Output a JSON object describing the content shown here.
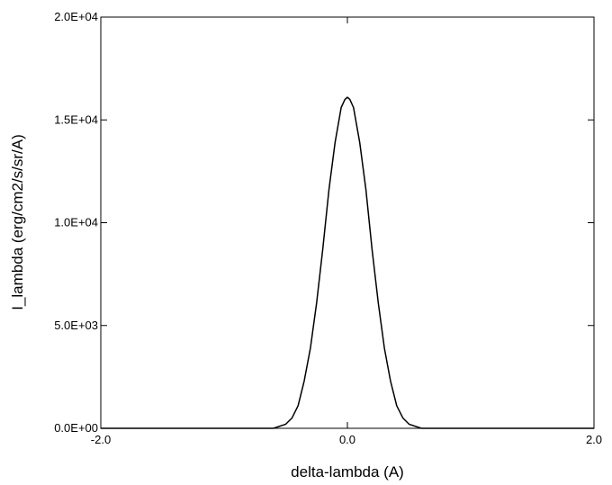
{
  "chart_data": {
    "type": "line",
    "title": "",
    "xlabel": "delta-lambda (A)",
    "ylabel": "I_lambda (erg/cm2/s/sr/A)",
    "xlim": [
      -2.0,
      2.0
    ],
    "ylim": [
      0,
      20000
    ],
    "x_ticks": [
      -2.0,
      0.0,
      2.0
    ],
    "x_tick_labels": [
      "-2.0",
      "0.0",
      "2.0"
    ],
    "y_ticks": [
      0,
      5000,
      10000,
      15000,
      20000
    ],
    "y_tick_labels": [
      "0.0E+00",
      "5.0E+03",
      "1.0E+04",
      "1.5E+04",
      "2.0E+04"
    ],
    "grid": false,
    "series": [
      {
        "color": "#000000",
        "x": [
          -2.0,
          -1.0,
          -0.6,
          -0.5,
          -0.45,
          -0.4,
          -0.35,
          -0.3,
          -0.25,
          -0.2,
          -0.15,
          -0.1,
          -0.05,
          -0.02,
          0.0,
          0.02,
          0.05,
          0.1,
          0.15,
          0.2,
          0.25,
          0.3,
          0.35,
          0.4,
          0.45,
          0.5,
          0.6,
          1.0,
          2.0
        ],
        "y": [
          0,
          0,
          0,
          200,
          500,
          1100,
          2300,
          3900,
          6100,
          8700,
          11600,
          13900,
          15600,
          16000,
          16100,
          16000,
          15600,
          13900,
          11600,
          8700,
          6100,
          3900,
          2300,
          1100,
          500,
          200,
          0,
          0,
          0
        ]
      }
    ]
  }
}
